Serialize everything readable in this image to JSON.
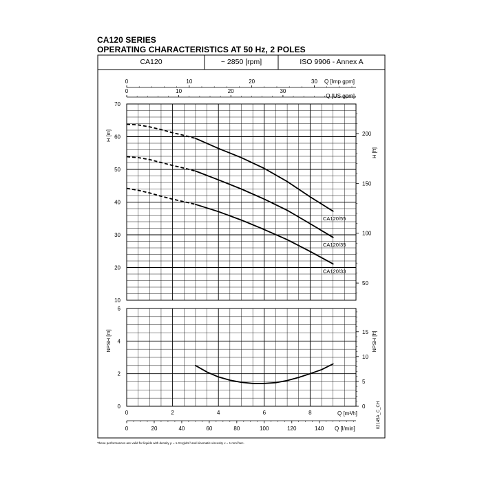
{
  "page": {
    "title_line1": "CA120 SERIES",
    "title_line2": "OPERATING CHARACTERISTICS AT 50 Hz, 2 POLES",
    "header": {
      "model": "CA120",
      "speed": "~ 2850 [rpm]",
      "standard": "ISO 9906 - Annex A"
    },
    "footnote": "These performances are valid for liquids with density ρ = 1.0 Kg/dm³ and kinematic viscosity ν = 1 mm²/sec.",
    "side_code": "02145A_C_CH"
  },
  "colors": {
    "line": "#000000",
    "grid": "#000000",
    "background": "#ffffff"
  },
  "chart_data": [
    {
      "type": "line",
      "id": "head",
      "top_axes": [
        {
          "label": "Q [Imp gpm]",
          "ticks": [
            0,
            10,
            20,
            30
          ]
        },
        {
          "label": "Q [US gpm]",
          "ticks": [
            0,
            10,
            20,
            30
          ]
        }
      ],
      "ylabel": "H [m]",
      "ylim": [
        10,
        70
      ],
      "yticks": [
        10,
        20,
        30,
        40,
        50,
        60,
        70
      ],
      "y2label": "H [ft]",
      "y2ticks": [
        50,
        100,
        150,
        200
      ],
      "xlim_m3h": [
        0,
        10
      ],
      "grid": true,
      "series": [
        {
          "name": "CA120/55",
          "dashed_x": [
            0,
            0.5,
            1,
            1.5,
            2,
            2.5,
            3.0
          ],
          "dashed_y": [
            63.8,
            63.6,
            63.0,
            62.2,
            61.2,
            60.4,
            59.5
          ],
          "x": [
            3.0,
            4,
            5,
            6,
            7,
            8,
            9.0
          ],
          "y": [
            59.5,
            56.4,
            53.6,
            50.3,
            46.3,
            41.6,
            37.2
          ]
        },
        {
          "name": "CA120/35",
          "dashed_x": [
            0,
            0.5,
            1,
            1.5,
            2,
            2.5,
            3.0
          ],
          "dashed_y": [
            53.9,
            53.6,
            53.0,
            52.1,
            51.2,
            50.4,
            49.5
          ],
          "x": [
            3.0,
            4,
            5,
            6,
            7,
            8,
            9.0
          ],
          "y": [
            49.5,
            46.8,
            44.0,
            40.9,
            37.5,
            33.4,
            29.2
          ]
        },
        {
          "name": "CA120/33",
          "dashed_x": [
            0,
            0.5,
            1,
            1.5,
            2,
            2.5,
            3.0
          ],
          "dashed_y": [
            44.2,
            43.6,
            42.8,
            41.8,
            40.9,
            40.1,
            39.3
          ],
          "x": [
            3.0,
            4,
            5,
            6,
            7,
            8,
            9.0
          ],
          "y": [
            39.3,
            37.1,
            34.5,
            31.6,
            28.5,
            24.9,
            21.1
          ]
        }
      ]
    },
    {
      "type": "line",
      "id": "npsh",
      "ylabel": "NPSH [m]",
      "ylim": [
        0,
        6
      ],
      "yticks": [
        0,
        2,
        4,
        6
      ],
      "y2label": "NPSH [ft]",
      "y2ticks": [
        0,
        5,
        10,
        15
      ],
      "xlabel": "Q [m³/h]",
      "xticks": [
        0,
        2,
        4,
        6,
        8
      ],
      "x2label": "Q [l/min]",
      "x2ticks": [
        0,
        20,
        40,
        60,
        80,
        100,
        120,
        140
      ],
      "xlim_m3h": [
        0,
        10
      ],
      "grid": true,
      "series": [
        {
          "x": [
            3.0,
            3.5,
            4,
            4.5,
            5,
            5.5,
            6,
            6.5,
            7,
            7.5,
            8,
            8.5,
            9.0
          ],
          "y": [
            2.5,
            2.1,
            1.8,
            1.6,
            1.47,
            1.4,
            1.4,
            1.45,
            1.58,
            1.77,
            2.0,
            2.25,
            2.6
          ]
        }
      ]
    }
  ]
}
